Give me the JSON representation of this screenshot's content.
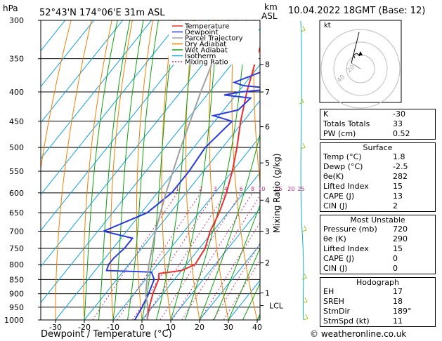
{
  "header": {
    "hpa": "hPa",
    "location": "52°43'N 174°06'E 31m ASL",
    "km": "km",
    "asl": "ASL",
    "datetime": "10.04.2022 18GMT (Base: 12)"
  },
  "footer": "© weatheronline.co.uk",
  "hodograph": {
    "label": "kt",
    "rings": [
      "20",
      "40"
    ]
  },
  "indices": {
    "top": [
      {
        "label": "K",
        "value": "-30"
      },
      {
        "label": "Totals Totals",
        "value": "33"
      },
      {
        "label": "PW (cm)",
        "value": "0.52"
      }
    ],
    "surface": {
      "title": "Surface",
      "rows": [
        {
          "label": "Temp (°C)",
          "value": "1.8"
        },
        {
          "label": "Dewp (°C)",
          "value": "-2.5"
        },
        {
          "label": "θe(K)",
          "value": "282"
        },
        {
          "label": "Lifted Index",
          "value": "15"
        },
        {
          "label": "CAPE (J)",
          "value": "13"
        },
        {
          "label": "CIN (J)",
          "value": "2"
        }
      ]
    },
    "unstable": {
      "title": "Most Unstable",
      "rows": [
        {
          "label": "Pressure (mb)",
          "value": "720"
        },
        {
          "label": "θe (K)",
          "value": "290"
        },
        {
          "label": "Lifted Index",
          "value": "15"
        },
        {
          "label": "CAPE (J)",
          "value": "0"
        },
        {
          "label": "CIN (J)",
          "value": "0"
        }
      ]
    },
    "hodo": {
      "title": "Hodograph",
      "rows": [
        {
          "label": "EH",
          "value": "17"
        },
        {
          "label": "SREH",
          "value": "18"
        },
        {
          "label": "StmDir",
          "value": "189°"
        },
        {
          "label": "StmSpd (kt)",
          "value": "11"
        }
      ]
    }
  },
  "chart_data": {
    "type": "line",
    "xlabel": "Dewpoint / Temperature (°C)",
    "ylabel_left": "hPa",
    "ylabel_right": "Mixing Ratio (g/kg)",
    "x_ticks": [
      -30,
      -20,
      -10,
      0,
      10,
      20,
      30,
      40
    ],
    "pressure_levels": [
      300,
      350,
      400,
      450,
      500,
      550,
      600,
      650,
      700,
      750,
      800,
      850,
      900,
      950,
      1000
    ],
    "km_ticks": [
      {
        "km": "8",
        "p": 358
      },
      {
        "km": "7",
        "p": 400
      },
      {
        "km": "6",
        "p": 460
      },
      {
        "km": "5",
        "p": 532
      },
      {
        "km": "4",
        "p": 618
      },
      {
        "km": "3",
        "p": 700
      },
      {
        "km": "2",
        "p": 795
      },
      {
        "km": "1",
        "p": 897
      }
    ],
    "lcl": {
      "label": "LCL",
      "p": 944
    },
    "mixing_ratio_labels": [
      "1",
      "2",
      "3",
      "4",
      "6",
      "8",
      "10",
      "15",
      "20",
      "25"
    ],
    "legend": [
      {
        "name": "Temperature",
        "color": "#e83030"
      },
      {
        "name": "Dewpoint",
        "color": "#2b3bdc"
      },
      {
        "name": "Parcel Trajectory",
        "color": "#a0a0a0"
      },
      {
        "name": "Dry Adiabat",
        "color": "#f08000"
      },
      {
        "name": "Wet Adiabat",
        "color": "#10a010"
      },
      {
        "name": "Isotherm",
        "color": "#10a0e0"
      },
      {
        "name": "Mixing Ratio",
        "color": "#c03080"
      }
    ],
    "series": [
      {
        "name": "Temperature",
        "points": [
          [
            1000,
            1.8
          ],
          [
            950,
            -1
          ],
          [
            900,
            -3.5
          ],
          [
            850,
            -5.5
          ],
          [
            830,
            -7
          ],
          [
            820,
            0
          ],
          [
            800,
            3
          ],
          [
            750,
            2
          ],
          [
            700,
            -1
          ],
          [
            650,
            -3
          ],
          [
            600,
            -6
          ],
          [
            550,
            -10
          ],
          [
            500,
            -15
          ],
          [
            450,
            -21
          ],
          [
            400,
            -27
          ],
          [
            350,
            -33
          ],
          [
            300,
            -39
          ]
        ]
      },
      {
        "name": "Dewpoint",
        "points": [
          [
            1000,
            -2.5
          ],
          [
            950,
            -3.5
          ],
          [
            900,
            -5
          ],
          [
            850,
            -7
          ],
          [
            825,
            -10
          ],
          [
            820,
            -26
          ],
          [
            800,
            -27
          ],
          [
            780,
            -27
          ],
          [
            750,
            -26
          ],
          [
            720,
            -26
          ],
          [
            700,
            -38
          ],
          [
            650,
            -28
          ],
          [
            600,
            -25
          ],
          [
            550,
            -25
          ],
          [
            500,
            -26
          ],
          [
            450,
            -24
          ],
          [
            440,
            -32
          ],
          [
            430,
            -25
          ],
          [
            410,
            -24
          ],
          [
            405,
            -34
          ],
          [
            400,
            -29
          ],
          [
            395,
            -18
          ],
          [
            390,
            -30
          ],
          [
            385,
            -34
          ],
          [
            370,
            -28
          ],
          [
            330,
            -26
          ],
          [
            325,
            -24
          ],
          [
            300,
            -24
          ]
        ]
      },
      {
        "name": "Parcel Trajectory",
        "points": [
          [
            1000,
            1.8
          ],
          [
            944,
            -2
          ],
          [
            900,
            -6
          ],
          [
            850,
            -9.5
          ],
          [
            800,
            -13
          ],
          [
            700,
            -20
          ],
          [
            600,
            -27
          ],
          [
            500,
            -34.5
          ],
          [
            400,
            -43
          ],
          [
            300,
            -53
          ]
        ]
      }
    ]
  }
}
